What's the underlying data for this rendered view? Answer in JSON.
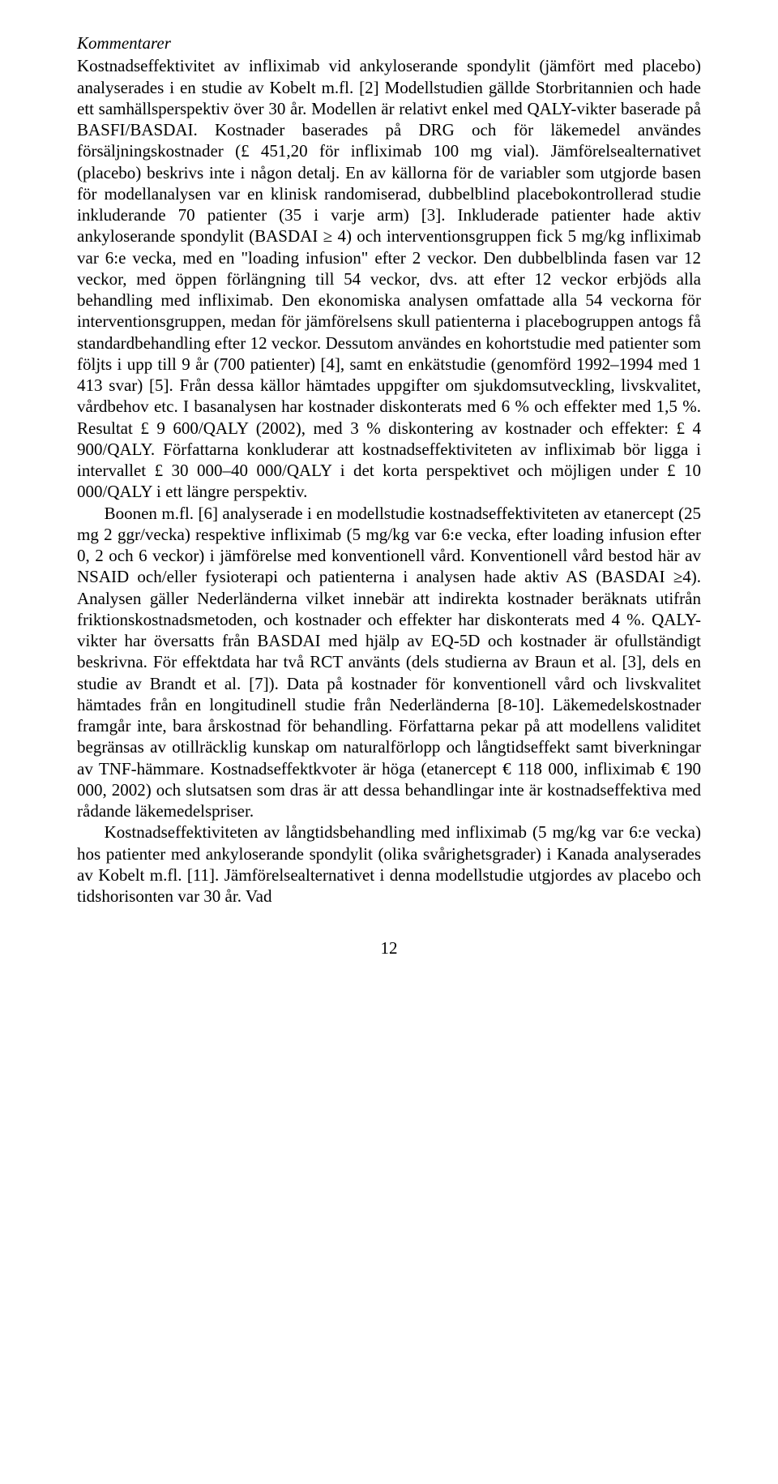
{
  "heading": "Kommentarer",
  "p1": "Kostnadseffektivitet av infliximab vid ankyloserande spondylit (jämfört med placebo) analyserades i en studie av Kobelt m.fl. [2] Modellstudien gällde Storbritannien och hade ett samhällsperspektiv över 30 år. Modellen är relativt enkel med QALY-vikter baserade på BASFI/BASDAI. Kostnader baserades på DRG och för läkemedel användes försäljningskostnader (£ 451,20 för infliximab 100 mg vial). Jämförelsealternativet (placebo) beskrivs inte i någon detalj. En av källorna för de variabler som utgjorde basen för modellanalysen var en klinisk randomiserad, dubbelblind placebokontrollerad studie inkluderande 70 patienter (35 i varje arm) [3]. Inkluderade patienter hade aktiv ankyloserande spondylit (BASDAI ≥ 4) och interventionsgruppen fick 5 mg/kg infliximab var 6:e vecka, med en \"loading infusion\" efter 2 veckor. Den dubbelblinda fasen var 12 veckor, med öppen förlängning till 54 veckor, dvs. att efter 12 veckor erbjöds alla behandling med infliximab. Den ekonomiska analysen omfattade alla 54 veckorna för interventionsgruppen, medan för jämförelsens skull patienterna i placebogruppen antogs få standardbehandling efter 12 veckor. Dessutom användes en kohortstudie med patienter som följts i upp till 9 år (700 patienter) [4], samt en enkätstudie (genomförd 1992–1994 med 1 413 svar) [5]. Från dessa källor hämtades uppgifter om sjukdomsutveckling, livskvalitet, vårdbehov etc. I basanalysen har kostnader diskonterats med 6 % och effekter med 1,5 %. Resultat £ 9 600/QALY (2002), med 3 % diskontering av kostnader och effekter: £ 4 900/QALY. Författarna konkluderar att kostnadseffektiviteten av infliximab bör ligga i intervallet £ 30 000–40 000/QALY i det korta perspektivet och möjligen under £ 10 000/QALY i ett längre perspektiv.",
  "p2": "Boonen m.fl. [6] analyserade i en modellstudie kostnadseffektiviteten av etanercept (25 mg 2 ggr/vecka) respektive infliximab (5 mg/kg var 6:e vecka, efter loading infusion efter 0, 2 och 6 veckor) i jämförelse med konventionell vård. Konventionell vård bestod här av NSAID och/eller fysioterapi och patienterna i analysen hade aktiv AS (BASDAI ≥4). Analysen gäller Nederländerna vilket innebär att indirekta kostnader beräknats utifrån friktionskostnadsmetoden, och kostnader och effekter har diskonterats med 4 %. QALY-vikter har översatts från BASDAI med hjälp av EQ-5D och kostnader är ofullständigt beskrivna. För effektdata har två RCT använts (dels studierna av Braun et al. [3], dels en studie av Brandt et al. [7]). Data på kostnader för konventionell vård och livskvalitet hämtades från en longitudinell studie från Nederländerna [8-10]. Läkemedelskostnader framgår inte, bara årskostnad för behandling. Författarna pekar på att modellens validitet begränsas av otillräcklig kunskap om naturalförlopp och långtidseffekt samt biverkningar av TNF-hämmare. Kostnadseffektkvoter är höga (etanercept € 118 000, infliximab € 190 000, 2002) och slutsatsen som dras är att dessa behandlingar inte är kostnadseffektiva med rådande läkemedelspriser.",
  "p3": "Kostnadseffektiviteten av långtidsbehandling med infliximab (5 mg/kg var 6:e vecka) hos patienter med ankyloserande spondylit (olika svårighetsgrader) i Kanada analyserades av Kobelt m.fl. [11]. Jämförelsealternativet i denna modellstudie utgjordes av placebo och tidshorisonten var 30 år. Vad",
  "pagenum": "12"
}
